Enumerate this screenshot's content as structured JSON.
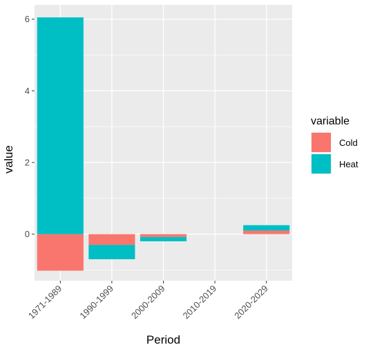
{
  "chart_data": {
    "type": "bar",
    "stacked": true,
    "xlabel": "Period",
    "ylabel": "value",
    "categories": [
      "1971-1989",
      "1990-1999",
      "2000-2009",
      "2010-2019",
      "2020-2029"
    ],
    "series": [
      {
        "name": "Cold",
        "color": "#F8766D",
        "values": [
          -1.02,
          -0.3,
          -0.08,
          0,
          0.1
        ]
      },
      {
        "name": "Heat",
        "color": "#00BFC4",
        "values": [
          6.05,
          -0.4,
          -0.12,
          0,
          0.15
        ]
      }
    ],
    "ylim": [
      -1.3,
      6.4
    ],
    "y_ticks": [
      0,
      2,
      4,
      6
    ],
    "legend": {
      "title": "variable",
      "position": "right"
    },
    "panel_background": "#EBEBEB",
    "grid": true
  }
}
